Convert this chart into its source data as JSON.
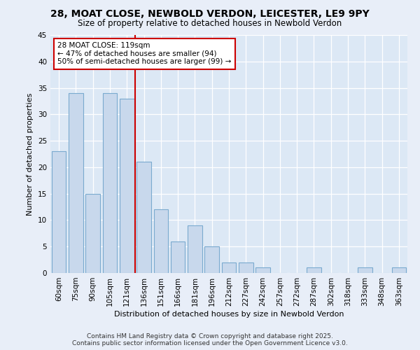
{
  "title": "28, MOAT CLOSE, NEWBOLD VERDON, LEICESTER, LE9 9PY",
  "subtitle": "Size of property relative to detached houses in Newbold Verdon",
  "xlabel": "Distribution of detached houses by size in Newbold Verdon",
  "ylabel": "Number of detached properties",
  "categories": [
    "60sqm",
    "75sqm",
    "90sqm",
    "105sqm",
    "121sqm",
    "136sqm",
    "151sqm",
    "166sqm",
    "181sqm",
    "196sqm",
    "212sqm",
    "227sqm",
    "242sqm",
    "257sqm",
    "272sqm",
    "287sqm",
    "302sqm",
    "318sqm",
    "333sqm",
    "348sqm",
    "363sqm"
  ],
  "values": [
    23,
    34,
    15,
    34,
    33,
    21,
    12,
    6,
    9,
    5,
    2,
    2,
    1,
    0,
    0,
    1,
    0,
    0,
    1,
    0,
    1
  ],
  "bar_color": "#c8d8ec",
  "bar_edge_color": "#7aaacf",
  "property_index": 4,
  "vline_color": "#cc0000",
  "annotation_line1": "28 MOAT CLOSE: 119sqm",
  "annotation_line2": "← 47% of detached houses are smaller (94)",
  "annotation_line3": "50% of semi-detached houses are larger (99) →",
  "annotation_box_color": "#ffffff",
  "annotation_box_edge_color": "#cc0000",
  "plot_bg_color": "#dce8f5",
  "fig_bg_color": "#e8eef8",
  "ylim": [
    0,
    45
  ],
  "yticks": [
    0,
    5,
    10,
    15,
    20,
    25,
    30,
    35,
    40,
    45
  ],
  "footer_line1": "Contains HM Land Registry data © Crown copyright and database right 2025.",
  "footer_line2": "Contains public sector information licensed under the Open Government Licence v3.0."
}
